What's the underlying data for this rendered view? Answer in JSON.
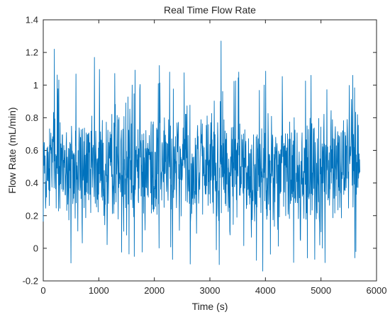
{
  "chart_data": {
    "type": "line",
    "title": "Real Time Flow Rate",
    "xlabel": "Time (s)",
    "ylabel": "Flow Rate (mL/min)",
    "xlim": [
      0,
      6000
    ],
    "ylim": [
      -0.2,
      1.4
    ],
    "xticks": [
      0,
      1000,
      2000,
      3000,
      4000,
      5000,
      6000
    ],
    "yticks": [
      -0.2,
      0,
      0.2,
      0.4,
      0.6,
      0.8,
      1,
      1.2,
      1.4
    ],
    "grid": false,
    "legend": "none",
    "series": [
      {
        "color": "#0072bd",
        "x_start": 0,
        "x_end": 5700,
        "sample_count": 1200,
        "mean": 0.5,
        "approx_min": -0.14,
        "approx_max": 1.27,
        "peaks": [
          {
            "x": 200,
            "y": 1.22
          },
          {
            "x": 920,
            "y": 1.17
          },
          {
            "x": 1600,
            "y": 1.0
          },
          {
            "x": 2090,
            "y": 1.12
          },
          {
            "x": 3200,
            "y": 1.27
          },
          {
            "x": 3520,
            "y": 1.08
          },
          {
            "x": 4820,
            "y": 1.06
          },
          {
            "x": 5570,
            "y": 1.06
          }
        ],
        "troughs": [
          {
            "x": 500,
            "y": -0.09
          },
          {
            "x": 1640,
            "y": -0.05
          },
          {
            "x": 3170,
            "y": -0.1
          },
          {
            "x": 3950,
            "y": -0.14
          },
          {
            "x": 5630,
            "y": -0.02
          }
        ]
      }
    ]
  }
}
